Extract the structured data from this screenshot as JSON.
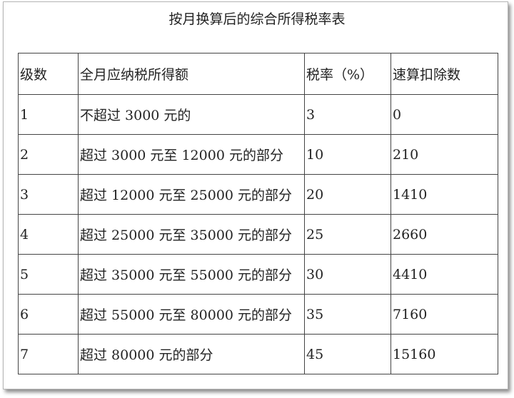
{
  "title": "按月换算后的综合所得税率表",
  "headers": [
    "级数",
    "全月应纳税所得额",
    "税率（%）",
    "速算扣除数"
  ],
  "rows": [
    [
      "1",
      "不超过 3000 元的",
      "3",
      "0"
    ],
    [
      "2",
      "超过 3000 元至 12000 元的部分",
      "10",
      "210"
    ],
    [
      "3",
      "超过 12000 元至 25000 元的部分",
      "20",
      "1410"
    ],
    [
      "4",
      "超过 25000 元至 35000 元的部分",
      "25",
      "2660"
    ],
    [
      "5",
      "超过 35000 元至 55000 元的部分",
      "30",
      "4410"
    ],
    [
      "6",
      "超过 55000 元至 80000 元的部分",
      "35",
      "7160"
    ],
    [
      "7",
      "超过 80000 元的部分",
      "45",
      "15160"
    ]
  ]
}
